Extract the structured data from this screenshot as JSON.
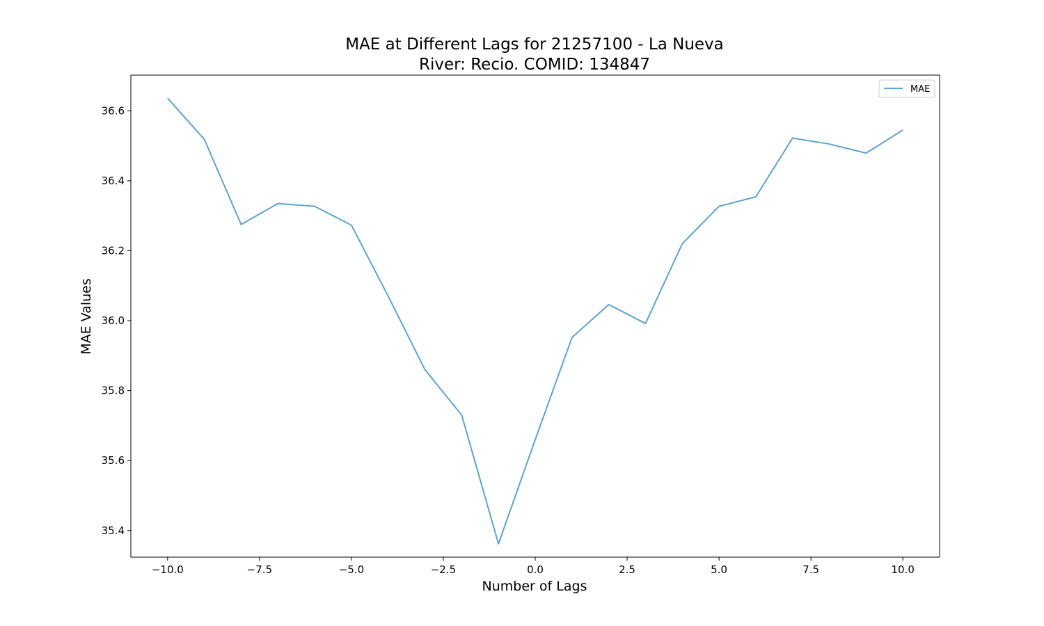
{
  "chart_data": {
    "type": "line",
    "title_line1": "MAE at Different Lags for 21257100 - La Nueva",
    "title_line2": "River: Recio. COMID: 134847",
    "xlabel": "Number of Lags",
    "ylabel": "MAE Values",
    "xlim": [
      -11,
      11
    ],
    "ylim": [
      35.324,
      36.702
    ],
    "xticks": [
      -10.0,
      -7.5,
      -5.0,
      -2.5,
      0.0,
      2.5,
      5.0,
      7.5,
      10.0
    ],
    "xtick_labels": [
      "−10.0",
      "−7.5",
      "−5.0",
      "−2.5",
      "0.0",
      "2.5",
      "5.0",
      "7.5",
      "10.0"
    ],
    "yticks": [
      35.4,
      35.6,
      35.8,
      36.0,
      36.2,
      36.4,
      36.6
    ],
    "ytick_labels": [
      "35.4",
      "35.6",
      "35.8",
      "36.0",
      "36.2",
      "36.4",
      "36.6"
    ],
    "legend_position": "upper-right",
    "grid": false,
    "series": [
      {
        "name": "MAE",
        "color": "#5fa2cc",
        "x": [
          -10,
          -9,
          -8,
          -7,
          -6,
          -5,
          -4,
          -3,
          -2,
          -1,
          0,
          1,
          2,
          3,
          4,
          5,
          6,
          7,
          8,
          9,
          10
        ],
        "y": [
          36.636,
          36.518,
          36.275,
          36.335,
          36.327,
          36.273,
          36.07,
          35.86,
          35.73,
          35.362,
          35.66,
          35.952,
          36.046,
          35.992,
          36.22,
          36.327,
          36.354,
          36.522,
          36.505,
          36.479,
          36.545
        ]
      }
    ]
  }
}
